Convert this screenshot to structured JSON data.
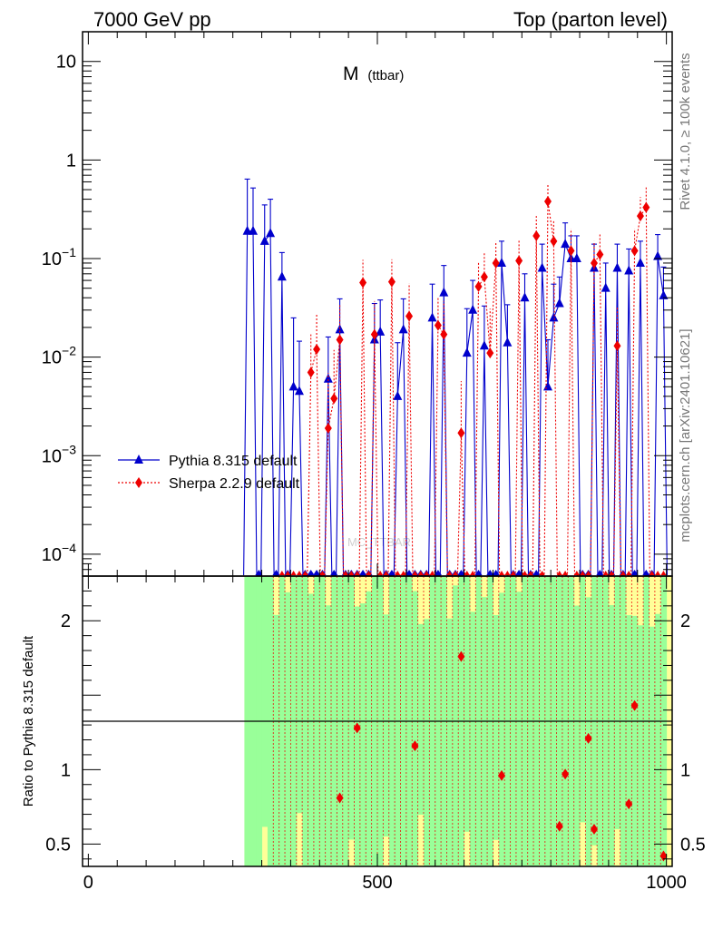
{
  "header": {
    "left_title": "7000 GeV pp",
    "right_title": "Top (parton level)"
  },
  "side_labels": {
    "rivet": "Rivet 4.1.0, ≥ 100k events",
    "mcplots": "mcplots.cern.ch [arXiv:2401.10621]"
  },
  "watermark": "MC_TTBAR",
  "chart_data": {
    "type": "line",
    "title_main": "M",
    "title_sub": "(ttbar)",
    "xlabel": "",
    "ylabel_ratio": "Ratio to Pythia 8.315 default",
    "xlim": [
      -10,
      1010
    ],
    "ylim": [
      6e-05,
      20
    ],
    "yscale": "log",
    "ratio_ylim": [
      0.35,
      2.3
    ],
    "x_ticks": [
      0,
      500,
      1000
    ],
    "x_tick_labels": [
      "0",
      "500",
      "1000"
    ],
    "y_ticks": [
      10,
      1,
      0.1,
      0.01,
      0.001,
      0.0001
    ],
    "y_tick_labels": [
      {
        "base": "10",
        "exp": ""
      },
      {
        "base": "1",
        "exp": ""
      },
      {
        "base": "10",
        "exp": "−1"
      },
      {
        "base": "10",
        "exp": "−2"
      },
      {
        "base": "10",
        "exp": "−3"
      },
      {
        "base": "10",
        "exp": "−4"
      }
    ],
    "ratio_ticks": [
      0.5,
      1,
      2
    ],
    "ratio_tick_labels": [
      "0.5",
      "1",
      "2"
    ],
    "band_start_x": 270,
    "legend": [
      {
        "name": "Pythia 8.315 default",
        "color": "#0000cc",
        "marker": "triangle",
        "style": "solid"
      },
      {
        "name": "Sherpa 2.2.9 default",
        "color": "#ee0000",
        "marker": "diamond",
        "style": "dotted"
      }
    ],
    "series": [
      {
        "name": "Pythia 8.315 default",
        "color": "#0000cc",
        "points": [
          {
            "x": 275,
            "y": 0.19,
            "err": 0.45
          },
          {
            "x": 285,
            "y": 0.19,
            "err": 0.33
          },
          {
            "x": 305,
            "y": 0.15,
            "err": 0.2
          },
          {
            "x": 315,
            "y": 0.18,
            "err": 0.22
          },
          {
            "x": 335,
            "y": 0.065,
            "err": 0.05
          },
          {
            "x": 355,
            "y": 0.005,
            "err": 0.02
          },
          {
            "x": 365,
            "y": 0.0045,
            "err": 0.01
          },
          {
            "x": 415,
            "y": 0.006,
            "err": 0.01
          },
          {
            "x": 435,
            "y": 0.019,
            "err": 0.02
          },
          {
            "x": 495,
            "y": 0.015,
            "err": 0.02
          },
          {
            "x": 505,
            "y": 0.018,
            "err": 0.02
          },
          {
            "x": 535,
            "y": 0.004,
            "err": 0.01
          },
          {
            "x": 545,
            "y": 0.019,
            "err": 0.02
          },
          {
            "x": 595,
            "y": 0.025,
            "err": 0.03
          },
          {
            "x": 615,
            "y": 0.045,
            "err": 0.04
          },
          {
            "x": 655,
            "y": 0.011,
            "err": 0.02
          },
          {
            "x": 665,
            "y": 0.03,
            "err": 0.03
          },
          {
            "x": 685,
            "y": 0.013,
            "err": 0.02
          },
          {
            "x": 715,
            "y": 0.09,
            "err": 0.06
          },
          {
            "x": 725,
            "y": 0.014,
            "err": 0.02
          },
          {
            "x": 755,
            "y": 0.04,
            "err": 0.03
          },
          {
            "x": 785,
            "y": 0.08,
            "err": 0.06
          },
          {
            "x": 795,
            "y": 0.005,
            "err": 0.01
          },
          {
            "x": 805,
            "y": 0.025,
            "err": 0.03
          },
          {
            "x": 815,
            "y": 0.035,
            "err": 0.03
          },
          {
            "x": 825,
            "y": 0.14,
            "err": 0.09
          },
          {
            "x": 835,
            "y": 0.1,
            "err": 0.07
          },
          {
            "x": 845,
            "y": 0.1,
            "err": 0.07
          },
          {
            "x": 875,
            "y": 0.08,
            "err": 0.06
          },
          {
            "x": 895,
            "y": 0.05,
            "err": 0.04
          },
          {
            "x": 915,
            "y": 0.08,
            "err": 0.06
          },
          {
            "x": 935,
            "y": 0.075,
            "err": 0.05
          },
          {
            "x": 955,
            "y": 0.09,
            "err": 0.06
          },
          {
            "x": 985,
            "y": 0.105,
            "err": 0.07
          },
          {
            "x": 995,
            "y": 0.042,
            "err": 0.04
          }
        ]
      },
      {
        "name": "Sherpa 2.2.9 default",
        "color": "#ee0000",
        "points": [
          {
            "x": 385,
            "y": 0.007,
            "err": 0.01
          },
          {
            "x": 395,
            "y": 0.012,
            "err": 0.015
          },
          {
            "x": 415,
            "y": 0.0019,
            "err": 0.005
          },
          {
            "x": 425,
            "y": 0.0038,
            "err": 0.008
          },
          {
            "x": 435,
            "y": 0.015,
            "err": 0.02
          },
          {
            "x": 475,
            "y": 0.057,
            "err": 0.04
          },
          {
            "x": 495,
            "y": 0.017,
            "err": 0.02
          },
          {
            "x": 525,
            "y": 0.058,
            "err": 0.04
          },
          {
            "x": 555,
            "y": 0.026,
            "err": 0.03
          },
          {
            "x": 605,
            "y": 0.021,
            "err": 0.02
          },
          {
            "x": 615,
            "y": 0.017,
            "err": 0.02
          },
          {
            "x": 645,
            "y": 0.0017,
            "err": 0.004
          },
          {
            "x": 675,
            "y": 0.052,
            "err": 0.04
          },
          {
            "x": 685,
            "y": 0.065,
            "err": 0.05
          },
          {
            "x": 695,
            "y": 0.011,
            "err": 0.02
          },
          {
            "x": 705,
            "y": 0.09,
            "err": 0.06
          },
          {
            "x": 745,
            "y": 0.095,
            "err": 0.06
          },
          {
            "x": 775,
            "y": 0.17,
            "err": 0.1
          },
          {
            "x": 795,
            "y": 0.38,
            "err": 0.2
          },
          {
            "x": 805,
            "y": 0.15,
            "err": 0.09
          },
          {
            "x": 835,
            "y": 0.12,
            "err": 0.08
          },
          {
            "x": 875,
            "y": 0.09,
            "err": 0.06
          },
          {
            "x": 885,
            "y": 0.11,
            "err": 0.07
          },
          {
            "x": 915,
            "y": 0.013,
            "err": 0.02
          },
          {
            "x": 945,
            "y": 0.12,
            "err": 0.08
          },
          {
            "x": 955,
            "y": 0.27,
            "err": 0.15
          },
          {
            "x": 965,
            "y": 0.33,
            "err": 0.2
          }
        ]
      }
    ],
    "ratio_points": [
      {
        "x": 435,
        "y": 0.81
      },
      {
        "x": 465,
        "y": 1.28
      },
      {
        "x": 565,
        "y": 1.16
      },
      {
        "x": 645,
        "y": 1.76
      },
      {
        "x": 715,
        "y": 0.96
      },
      {
        "x": 815,
        "y": 0.62
      },
      {
        "x": 825,
        "y": 0.97
      },
      {
        "x": 865,
        "y": 1.21
      },
      {
        "x": 875,
        "y": 0.6
      },
      {
        "x": 935,
        "y": 0.77
      },
      {
        "x": 945,
        "y": 1.43
      },
      {
        "x": 995,
        "y": 0.42
      }
    ]
  }
}
